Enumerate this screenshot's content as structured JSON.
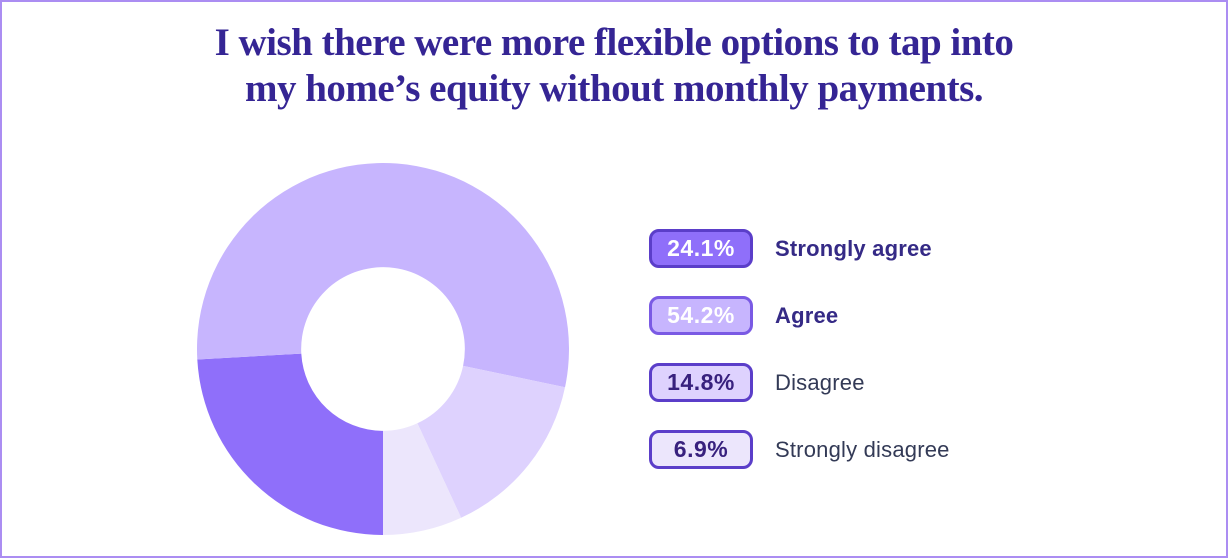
{
  "frame": {
    "background": "#ffffff",
    "border_color": "#ab8df2"
  },
  "title": {
    "line1": "I wish there were more flexible options to tap into",
    "line2": "my home’s equity without monthly payments.",
    "color": "#352594"
  },
  "legend": {
    "items": [
      {
        "pct": "24.1%",
        "label": "Strongly agree",
        "badge_bg": "#8f6ffa",
        "badge_border": "#5b3ec9",
        "badge_text": "#ffffff",
        "label_bold": true,
        "label_color": "#352a86"
      },
      {
        "pct": "54.2%",
        "label": "Agree",
        "badge_bg": "#c7b5fe",
        "badge_border": "#7a5ae4",
        "badge_text": "#ffffff",
        "label_bold": true,
        "label_color": "#352a86"
      },
      {
        "pct": "14.8%",
        "label": "Disagree",
        "badge_bg": "#ded2fe",
        "badge_border": "#5b3ec9",
        "badge_text": "#38217e",
        "label_bold": false,
        "label_color": "#333a56"
      },
      {
        "pct": "6.9%",
        "label": "Strongly disagree",
        "badge_bg": "#ece6fc",
        "badge_border": "#5b3ec9",
        "badge_text": "#38217e",
        "label_bold": false,
        "label_color": "#333a56"
      }
    ]
  },
  "chart_data": {
    "type": "pie",
    "subtype": "donut",
    "title": "I wish there were more flexible options to tap into my home’s equity without monthly payments.",
    "categories": [
      "Strongly agree",
      "Agree",
      "Disagree",
      "Strongly disagree"
    ],
    "values": [
      24.1,
      54.2,
      14.8,
      6.9
    ],
    "colors": [
      "#8f6ffa",
      "#c7b5fe",
      "#ded2fe",
      "#ece6fc"
    ],
    "start_angle_deg_clockwise_from_top": 180,
    "inner_radius_ratio": 0.44,
    "hole_color": "#ffffff",
    "legend_position": "right",
    "grid": false
  }
}
